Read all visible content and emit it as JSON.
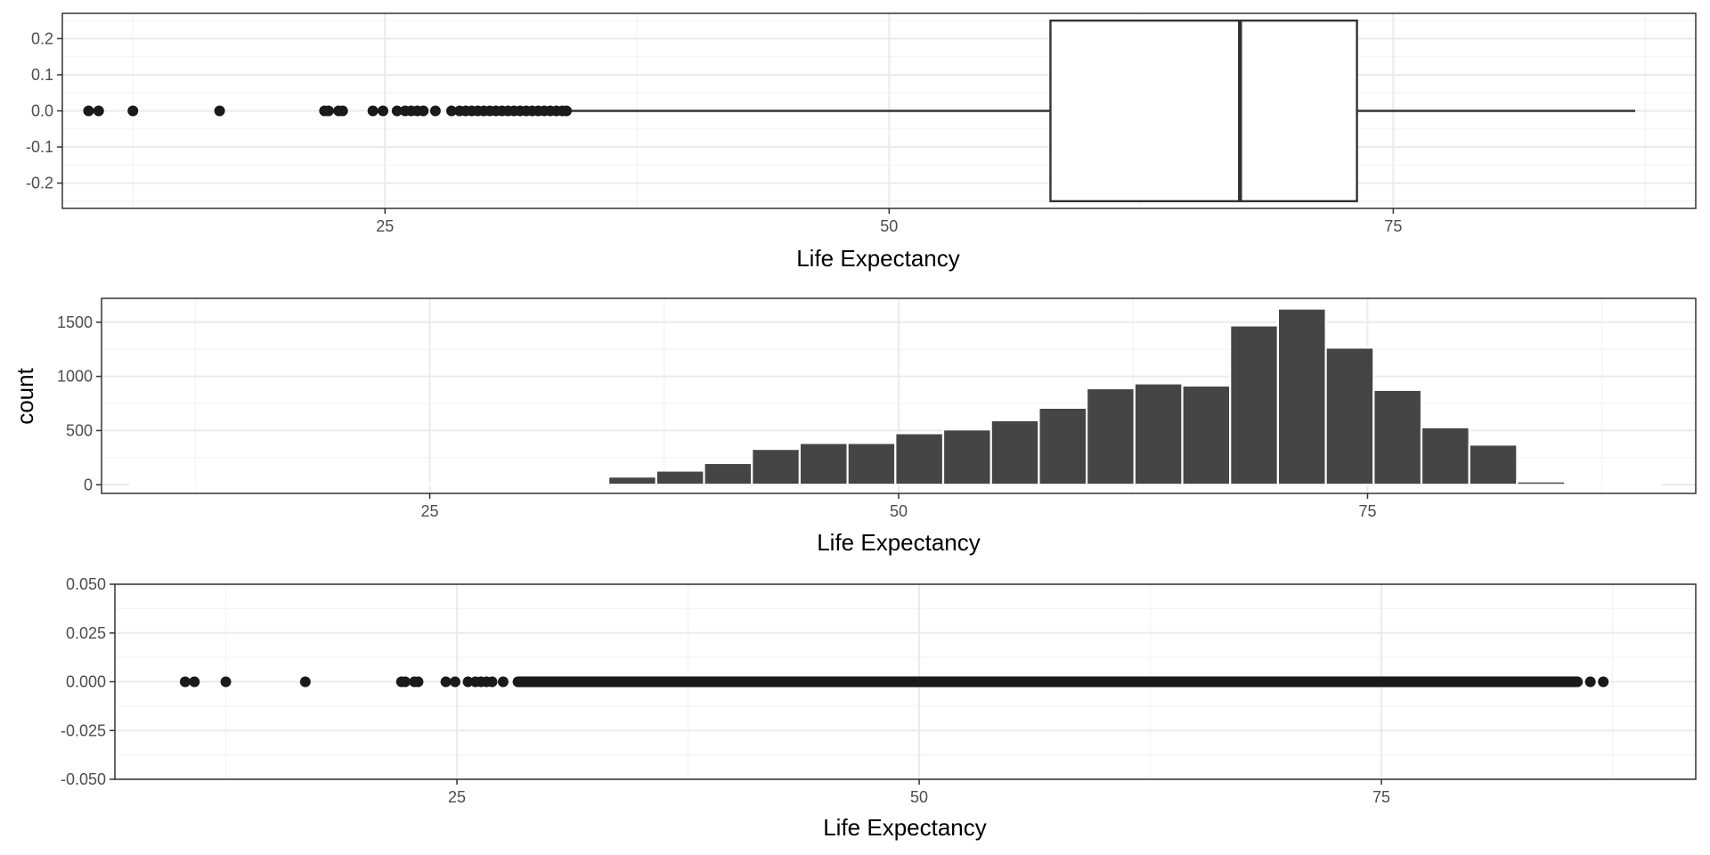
{
  "colors": {
    "panel_border": "#333333",
    "grid_major": "#ebebeb",
    "grid_minor": "#f4f4f4",
    "fill_dark": "#454545",
    "point": "#1a1a1a",
    "box_fill": "#ffffff"
  },
  "chart_data": [
    {
      "type": "boxplot",
      "xlabel": "Life Expectancy",
      "ylabel": "",
      "xlim": [
        9,
        90
      ],
      "ylim": [
        -0.27,
        0.27
      ],
      "x_ticks": [
        25,
        50,
        75
      ],
      "x_tick_labels": [
        "25",
        "50",
        "75"
      ],
      "y_ticks": [
        -0.2,
        -0.1,
        0.0,
        0.1,
        0.2
      ],
      "y_tick_labels": [
        "-0.2",
        "-0.1",
        "0.0",
        "0.1",
        "0.2"
      ],
      "grid": true,
      "box": {
        "q1": 58.0,
        "median": 67.4,
        "q3": 73.2,
        "whisker_low": 34.1,
        "whisker_high": 87.0,
        "half_width": 0.25
      },
      "outliers": [
        10.3,
        10.8,
        12.5,
        16.8,
        22.0,
        22.2,
        22.7,
        22.9,
        24.4,
        24.9,
        25.6,
        26.0,
        26.3,
        26.6,
        26.9,
        27.5,
        28.3,
        28.7,
        29.0,
        29.3,
        29.6,
        29.9,
        30.2,
        30.5,
        30.8,
        31.1,
        31.4,
        31.7,
        32.0,
        32.3,
        32.6,
        32.9,
        33.2,
        33.5,
        33.8,
        34.0
      ]
    },
    {
      "type": "bar",
      "subtype": "histogram",
      "xlabel": "Life Expectancy",
      "ylabel": "count",
      "xlim": [
        7.5,
        92.5
      ],
      "ylim": [
        -80,
        1720
      ],
      "x_ticks": [
        25,
        50,
        75
      ],
      "x_tick_labels": [
        "25",
        "50",
        "75"
      ],
      "y_ticks": [
        0,
        500,
        1000,
        1500
      ],
      "y_tick_labels": [
        "0",
        "500",
        "1000",
        "1500"
      ],
      "grid": true,
      "bin_width": 2.55,
      "bin_centers": [
        10.3,
        12.85,
        15.4,
        17.95,
        20.5,
        23.05,
        25.6,
        28.15,
        30.7,
        33.25,
        35.8,
        38.35,
        40.9,
        43.45,
        46.0,
        48.55,
        51.1,
        53.65,
        56.2,
        58.75,
        61.3,
        63.85,
        66.4,
        68.95,
        71.5,
        74.05,
        76.6,
        79.15,
        81.7,
        84.25,
        86.8,
        89.35
      ],
      "values": [
        2,
        0,
        1,
        1,
        1,
        2,
        4,
        6,
        6,
        15,
        75,
        130,
        200,
        330,
        385,
        385,
        475,
        510,
        595,
        710,
        890,
        935,
        915,
        1470,
        1625,
        1265,
        875,
        530,
        370,
        30,
        2,
        0
      ]
    },
    {
      "type": "scatter",
      "xlabel": "Life Expectancy",
      "ylabel": "",
      "xlim": [
        6.5,
        92
      ],
      "ylim": [
        -0.05,
        0.05
      ],
      "x_ticks": [
        25,
        50,
        75
      ],
      "x_tick_labels": [
        "25",
        "50",
        "75"
      ],
      "y_ticks": [
        -0.05,
        -0.025,
        0.0,
        0.025,
        0.05
      ],
      "y_tick_labels": [
        "-0.050",
        "-0.025",
        "0.000",
        "0.025",
        "0.050"
      ],
      "grid": true,
      "points_y": 0,
      "isolated_points": [
        10.3,
        10.8,
        12.5,
        16.8,
        22.0,
        22.2,
        22.7,
        22.9,
        24.4,
        24.9,
        25.6,
        26.0,
        26.3,
        26.6,
        26.9,
        27.5,
        86.3,
        87.0
      ],
      "dense_range": [
        28.3,
        85.6
      ]
    }
  ]
}
